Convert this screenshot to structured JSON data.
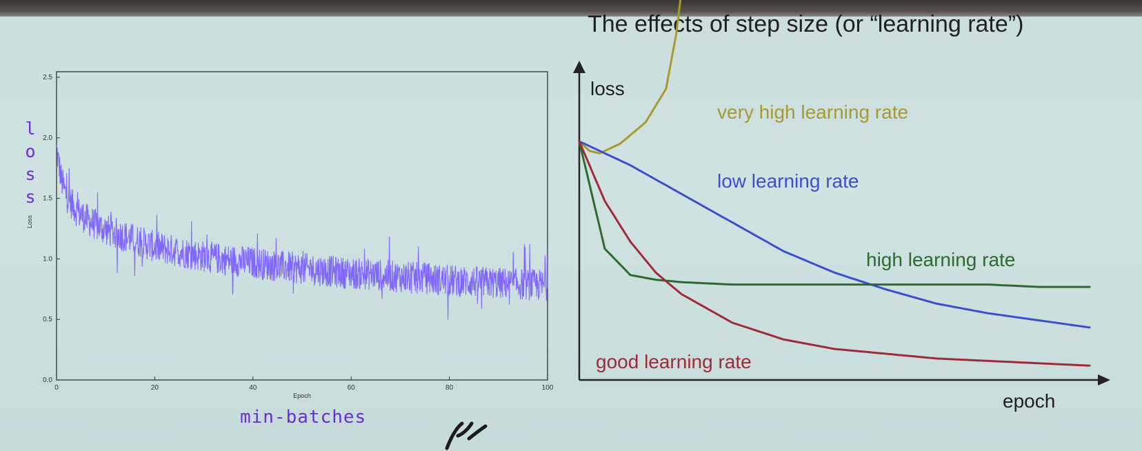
{
  "slide": {
    "title": "The effects of step size (or “learning rate”)",
    "annotation_vertical": "loss",
    "annotation_bottom": "min-batches"
  },
  "chart_data": [
    {
      "type": "line",
      "title": "",
      "xlabel": "Epoch",
      "ylabel": "Loss",
      "xlim": [
        0,
        100
      ],
      "ylim": [
        0.0,
        2.5
      ],
      "xticks": [
        "0",
        "20",
        "40",
        "60",
        "80",
        "100"
      ],
      "yticks": [
        "0.0",
        "0.5",
        "1.0",
        "1.5",
        "2.0",
        "2.5"
      ],
      "series_color": "#7c5cff",
      "series": [
        {
          "x": [
            0,
            1,
            2,
            4,
            6,
            8,
            10,
            15,
            20,
            25,
            30,
            35,
            40,
            45,
            50,
            55,
            60,
            65,
            70,
            75,
            80,
            85,
            90,
            95,
            100
          ],
          "values": [
            1.9,
            1.65,
            1.52,
            1.4,
            1.33,
            1.28,
            1.24,
            1.17,
            1.1,
            1.06,
            1.02,
            0.99,
            0.97,
            0.94,
            0.92,
            0.9,
            0.88,
            0.87,
            0.85,
            0.84,
            0.82,
            0.81,
            0.8,
            0.79,
            0.78
          ]
        }
      ],
      "noise_amplitude": 0.13
    },
    {
      "type": "line",
      "title": "",
      "xlabel": "epoch",
      "ylabel": "loss",
      "x": [
        0,
        5,
        10,
        15,
        20,
        30,
        40,
        50,
        60,
        70,
        80,
        90,
        100
      ],
      "series": [
        {
          "name": "very high learning rate",
          "color": "#a89a2e",
          "x": [
            0,
            2,
            4,
            8,
            13,
            17,
            19,
            21,
            22
          ],
          "values": [
            1.0,
            0.96,
            0.95,
            0.99,
            1.08,
            1.22,
            1.45,
            1.8,
            2.1
          ]
        },
        {
          "name": "low learning rate",
          "color": "#3a4fd0",
          "values": [
            1.0,
            0.95,
            0.9,
            0.84,
            0.78,
            0.66,
            0.54,
            0.45,
            0.38,
            0.32,
            0.28,
            0.25,
            0.22
          ]
        },
        {
          "name": "high learning rate",
          "color": "#2e6a30",
          "values": [
            1.0,
            0.55,
            0.44,
            0.42,
            0.41,
            0.4,
            0.4,
            0.4,
            0.4,
            0.4,
            0.4,
            0.39,
            0.39
          ]
        },
        {
          "name": "good learning rate",
          "color": "#a02a38",
          "values": [
            1.0,
            0.75,
            0.58,
            0.45,
            0.36,
            0.24,
            0.17,
            0.13,
            0.11,
            0.09,
            0.08,
            0.07,
            0.06
          ]
        }
      ]
    }
  ]
}
